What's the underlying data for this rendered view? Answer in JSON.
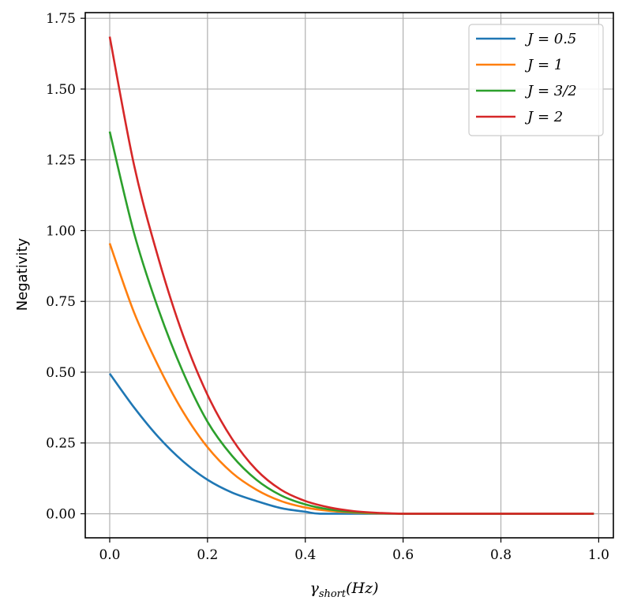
{
  "chart_data": {
    "type": "line",
    "title": "",
    "xlabel": "γshort(Hz)",
    "xlabel_main": "γ",
    "xlabel_sub": "short",
    "xlabel_rest": "(Hz)",
    "ylabel": "Negativity",
    "xlim": [
      -0.05,
      1.03
    ],
    "ylim": [
      -0.085,
      1.77
    ],
    "grid": true,
    "legend_position": "top-right",
    "x_ticks": [
      0.0,
      0.2,
      0.4,
      0.6,
      0.8,
      1.0
    ],
    "x_tick_labels": [
      "0.0",
      "0.2",
      "0.4",
      "0.6",
      "0.8",
      "1.0"
    ],
    "y_ticks": [
      0.0,
      0.25,
      0.5,
      0.75,
      1.0,
      1.25,
      1.5,
      1.75
    ],
    "y_tick_labels": [
      "0.00",
      "0.25",
      "0.50",
      "0.75",
      "1.00",
      "1.25",
      "1.50",
      "1.75"
    ],
    "series": [
      {
        "name": "J = 0.5",
        "color": "#1f77b4",
        "x": [
          0.0,
          0.05,
          0.1,
          0.15,
          0.2,
          0.25,
          0.3,
          0.35,
          0.4,
          0.43,
          0.5,
          0.6,
          0.7,
          0.8,
          0.9,
          0.99
        ],
        "y": [
          0.495,
          0.375,
          0.27,
          0.185,
          0.12,
          0.075,
          0.045,
          0.02,
          0.007,
          0.0,
          0.0,
          0.0,
          0.0,
          0.0,
          0.0,
          0.0
        ]
      },
      {
        "name": "J = 1",
        "color": "#ff7f0e",
        "x": [
          0.0,
          0.05,
          0.1,
          0.15,
          0.2,
          0.25,
          0.3,
          0.35,
          0.4,
          0.45,
          0.5,
          0.55,
          0.6,
          0.7,
          0.8,
          0.9,
          0.99
        ],
        "y": [
          0.955,
          0.71,
          0.52,
          0.36,
          0.235,
          0.145,
          0.085,
          0.045,
          0.022,
          0.01,
          0.004,
          0.001,
          0.0,
          0.0,
          0.0,
          0.0,
          0.0
        ]
      },
      {
        "name": "J = 3/2",
        "color": "#2ca02c",
        "x": [
          0.0,
          0.05,
          0.1,
          0.15,
          0.2,
          0.25,
          0.3,
          0.35,
          0.4,
          0.45,
          0.5,
          0.55,
          0.6,
          0.7,
          0.8,
          0.9,
          0.99
        ],
        "y": [
          1.35,
          0.99,
          0.72,
          0.5,
          0.325,
          0.205,
          0.12,
          0.065,
          0.033,
          0.015,
          0.006,
          0.002,
          0.0,
          0.0,
          0.0,
          0.0,
          0.0
        ]
      },
      {
        "name": "J = 2",
        "color": "#d62728",
        "x": [
          0.0,
          0.05,
          0.1,
          0.15,
          0.2,
          0.25,
          0.3,
          0.35,
          0.4,
          0.45,
          0.5,
          0.55,
          0.6,
          0.7,
          0.8,
          0.9,
          0.99
        ],
        "y": [
          1.685,
          1.23,
          0.9,
          0.63,
          0.42,
          0.265,
          0.155,
          0.085,
          0.045,
          0.022,
          0.009,
          0.003,
          0.0,
          0.0,
          0.0,
          0.0,
          0.0
        ]
      }
    ]
  }
}
